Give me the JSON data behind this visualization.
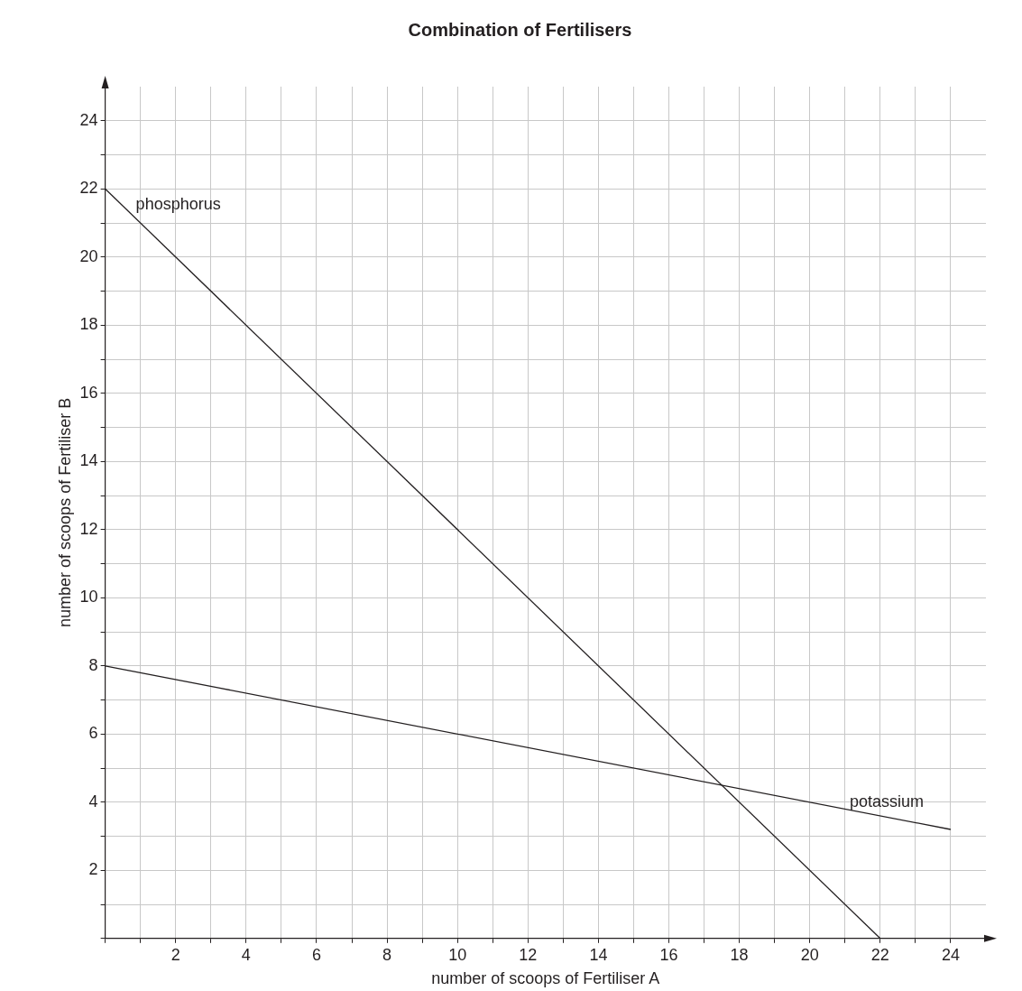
{
  "chart_data": {
    "type": "line",
    "title": "Combination of Fertilisers",
    "xlabel": "number of scoops of Fertiliser A",
    "ylabel": "number of scoops of Fertiliser B",
    "series": [
      {
        "name": "phosphorus",
        "color": "#231f20",
        "x": [
          0,
          22
        ],
        "values": [
          22,
          0
        ]
      },
      {
        "name": "potassium",
        "color": "#231f20",
        "x": [
          0,
          24
        ],
        "values": [
          8,
          3.2
        ]
      }
    ],
    "xlim": [
      0,
      25
    ],
    "ylim": [
      0,
      25
    ],
    "xticks": [
      {
        "value": 0,
        "label": null
      },
      {
        "value": 1,
        "label": null
      },
      2,
      {
        "value": 3,
        "label": null
      },
      4,
      {
        "value": 5,
        "label": null
      },
      6,
      {
        "value": 7,
        "label": null
      },
      8,
      {
        "value": 9,
        "label": null
      },
      10,
      {
        "value": 11,
        "label": null
      },
      12,
      {
        "value": 13,
        "label": null
      },
      14,
      {
        "value": 15,
        "label": null
      },
      16,
      {
        "value": 17,
        "label": null
      },
      18,
      {
        "value": 19,
        "label": null
      },
      20,
      {
        "value": 21,
        "label": null
      },
      22,
      {
        "value": 23,
        "label": null
      },
      24
    ],
    "yticks": [
      {
        "value": 0,
        "label": null
      },
      {
        "value": 1,
        "label": null
      },
      2,
      {
        "value": 3,
        "label": null
      },
      4,
      {
        "value": 5,
        "label": null
      },
      6,
      {
        "value": 7,
        "label": null
      },
      8,
      {
        "value": 9,
        "label": null
      },
      10,
      {
        "value": 11,
        "label": null
      },
      12,
      {
        "value": 13,
        "label": null
      },
      14,
      {
        "value": 15,
        "label": null
      },
      16,
      {
        "value": 17,
        "label": null
      },
      18,
      {
        "value": 19,
        "label": null
      },
      20,
      {
        "value": 21,
        "label": null
      },
      22,
      {
        "value": 23,
        "label": null
      },
      24
    ],
    "grid": true,
    "legend": false,
    "marker": "none",
    "line_style": "solid"
  }
}
